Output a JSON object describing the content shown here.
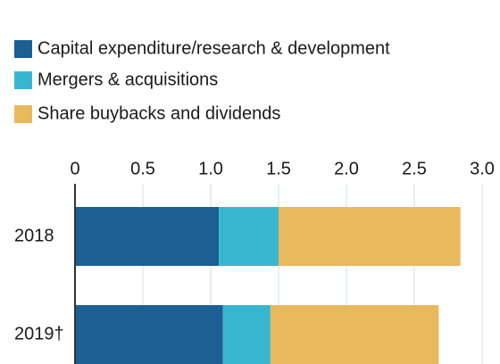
{
  "chart_data": {
    "type": "stacked_barh",
    "categories": [
      "2018",
      "2019†"
    ],
    "series": [
      {
        "name": "Capital expenditure/research & development",
        "color": "#1b5f95",
        "values": [
          1.06,
          1.09
        ]
      },
      {
        "name": "Mergers & acquisitions",
        "color": "#38b6d0",
        "values": [
          0.44,
          0.35
        ]
      },
      {
        "name": "Share buybacks and dividends",
        "color": "#e9b95e",
        "values": [
          1.34,
          1.24
        ]
      }
    ],
    "xlim": [
      0,
      3
    ],
    "xticks": [
      0,
      0.5,
      {
        "value": 1,
        "label": "1.0"
      },
      1.5,
      {
        "value": 2,
        "label": "2.0"
      },
      2.5,
      {
        "value": 3,
        "label": "3.0"
      }
    ],
    "grid": true
  }
}
